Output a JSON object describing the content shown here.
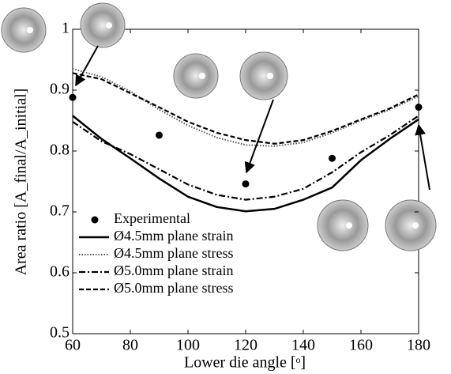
{
  "chart_data": {
    "type": "line",
    "xlabel": "Lower die angle [ᵒ]",
    "ylabel": "Area ratio [A_final/A_initial]",
    "xlim": [
      60,
      180
    ],
    "xticks": [
      60,
      80,
      100,
      120,
      140,
      160,
      180
    ],
    "ylim": [
      0.5,
      1
    ],
    "yticks": [
      0.5,
      0.6,
      0.7,
      0.8,
      0.9,
      1
    ],
    "legend": "lower left",
    "x": [
      60,
      70,
      80,
      90,
      100,
      110,
      120,
      130,
      140,
      150,
      160,
      170,
      180
    ],
    "points": {
      "name": "Experimental",
      "color": "#000000",
      "x": [
        60,
        90,
        120,
        150,
        180
      ],
      "values": [
        0.888,
        0.826,
        0.746,
        0.788,
        0.872
      ]
    },
    "series": [
      {
        "name": "Ø4.5mm plane strain",
        "color": "#000000",
        "dash": "solid",
        "values": [
          0.858,
          0.82,
          0.788,
          0.755,
          0.725,
          0.708,
          0.701,
          0.705,
          0.72,
          0.74,
          0.785,
          0.82,
          0.852
        ]
      },
      {
        "name": "Ø4.5mm plane stress",
        "color": "#555555",
        "dash": "dotted",
        "values": [
          0.935,
          0.922,
          0.898,
          0.868,
          0.842,
          0.822,
          0.81,
          0.808,
          0.814,
          0.83,
          0.85,
          0.868,
          0.89
        ]
      },
      {
        "name": "Ø5.0mm plane strain",
        "color": "#000000",
        "dash": "dashdot",
        "values": [
          0.848,
          0.816,
          0.795,
          0.77,
          0.745,
          0.728,
          0.72,
          0.725,
          0.738,
          0.765,
          0.798,
          0.826,
          0.858
        ]
      },
      {
        "name": "Ø5.0mm plane stress",
        "color": "#000000",
        "dash": "dashed",
        "values": [
          0.928,
          0.918,
          0.895,
          0.872,
          0.848,
          0.83,
          0.818,
          0.812,
          0.818,
          0.833,
          0.852,
          0.87,
          0.893
        ]
      }
    ]
  }
}
